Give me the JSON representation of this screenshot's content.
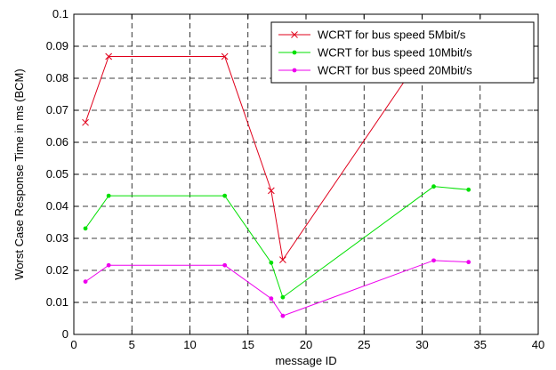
{
  "chart_data": {
    "type": "line",
    "xlabel": "message ID",
    "ylabel": "Worst Case Response Time in ms (BCM)",
    "xlim": [
      0,
      40
    ],
    "ylim": [
      0,
      0.1
    ],
    "xticks": [
      0,
      5,
      10,
      15,
      20,
      25,
      30,
      35,
      40
    ],
    "yticks": [
      0,
      0.01,
      0.02,
      0.03,
      0.04,
      0.05,
      0.06,
      0.07,
      0.08,
      0.09,
      0.1
    ],
    "xtick_labels": [
      "0",
      "5",
      "10",
      "15",
      "20",
      "25",
      "30",
      "35",
      "40"
    ],
    "ytick_labels": [
      "0",
      "0.01",
      "0.02",
      "0.03",
      "0.04",
      "0.05",
      "0.06",
      "0.07",
      "0.08",
      "0.09",
      "0.1"
    ],
    "grid": true,
    "grid_style": "dashed",
    "legend_position": "top-right",
    "series": [
      {
        "name": "WCRT for bus speed 5Mbit/s",
        "color": "#e0001b",
        "marker": "x",
        "x": [
          1,
          3,
          13,
          17,
          18,
          31,
          34
        ],
        "y": [
          0.0662,
          0.0868,
          0.0868,
          0.0449,
          0.0233,
          0.0925,
          0.0905
        ]
      },
      {
        "name": "WCRT for bus speed 10Mbit/s",
        "color": "#00e000",
        "marker": "dot",
        "x": [
          1,
          3,
          13,
          17,
          18,
          31,
          34
        ],
        "y": [
          0.0331,
          0.0433,
          0.0433,
          0.0224,
          0.0116,
          0.0462,
          0.0452
        ]
      },
      {
        "name": "WCRT for bus speed 20Mbit/s",
        "color": "#ee00ee",
        "marker": "dot",
        "x": [
          1,
          3,
          13,
          17,
          18,
          31,
          34
        ],
        "y": [
          0.0165,
          0.0216,
          0.0216,
          0.0112,
          0.0058,
          0.0231,
          0.0226
        ]
      }
    ]
  }
}
